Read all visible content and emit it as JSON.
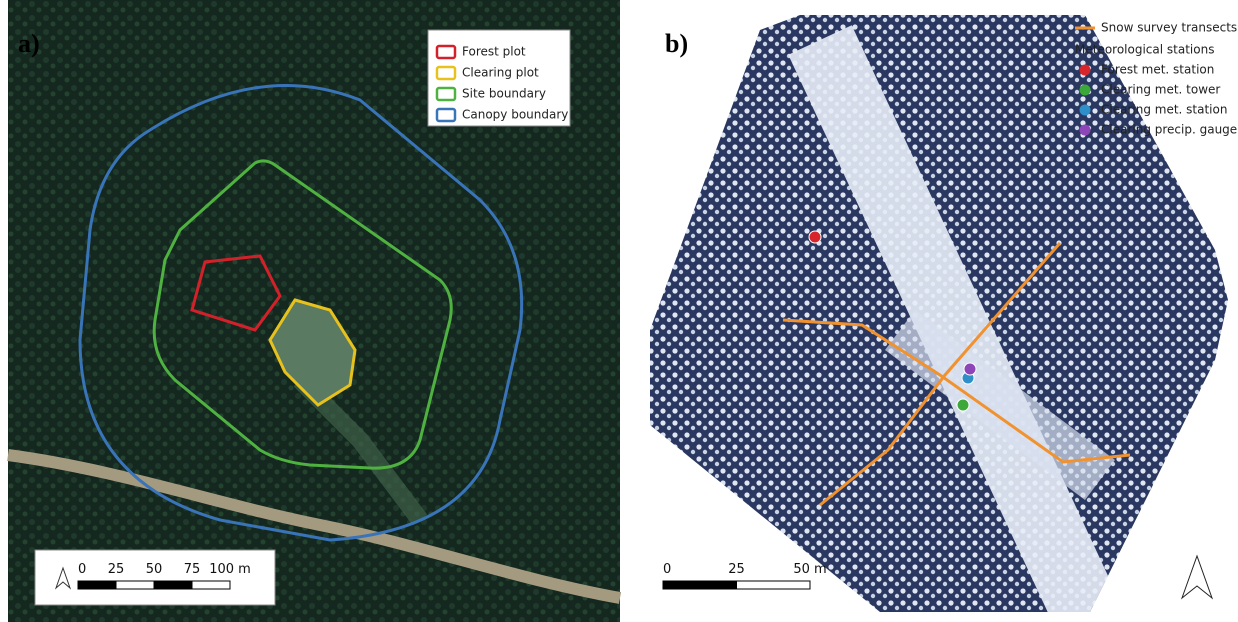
{
  "panels": [
    {
      "label": "a)",
      "legend": [
        "Forest plot",
        "Clearing plot",
        "Site boundary",
        "Canopy boundary"
      ],
      "scale": [
        "0",
        "25",
        "50",
        "75",
        "100 m"
      ]
    },
    {
      "label": "b)",
      "legend_line": "Snow survey transects",
      "legend_group": "Meteorological stations",
      "legend": [
        "Forest met. station",
        "Clearing met. tower",
        "Clearing met. station",
        "Clearing precip. gauge"
      ],
      "scale": [
        "0",
        "25",
        "50 m"
      ]
    }
  ]
}
